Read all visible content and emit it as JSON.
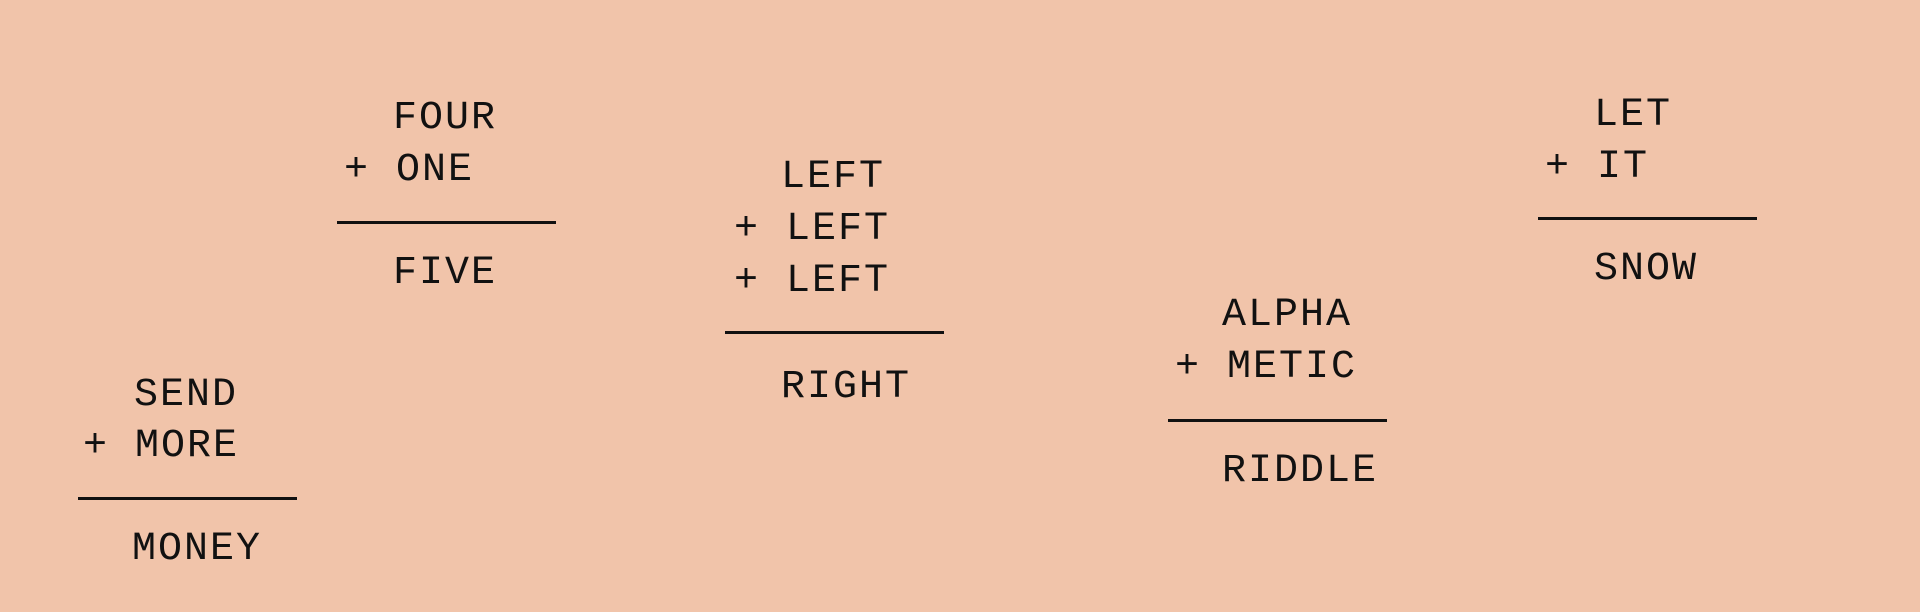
{
  "background_color": "#f1c4aa",
  "text_color": "#111111",
  "puzzles": [
    {
      "lines": [
        "SEND",
        "+ MORE"
      ],
      "result": "MONEY"
    },
    {
      "lines": [
        "FOUR",
        "+ ONE"
      ],
      "result": "FIVE"
    },
    {
      "lines": [
        "LEFT",
        "+ LEFT",
        "+ LEFT"
      ],
      "result": "RIGHT"
    },
    {
      "lines": [
        "ALPHA",
        "+ METIC"
      ],
      "result": "RIDDLE"
    },
    {
      "lines": [
        "LET",
        "+ IT"
      ],
      "result": "SNOW"
    }
  ]
}
